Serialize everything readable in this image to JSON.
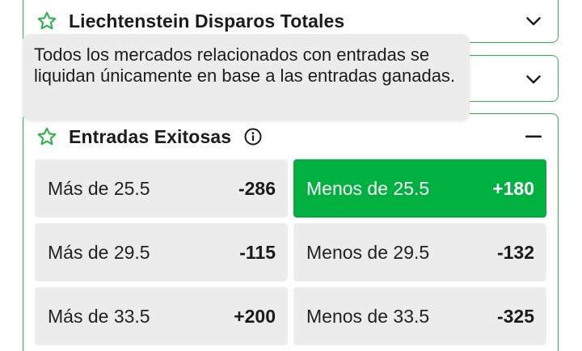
{
  "markets": [
    {
      "title": "Liechtenstein Disparos Totales",
      "toggle_icon": "chevron-down-icon"
    },
    {
      "title": "",
      "toggle_icon": "chevron-down-icon"
    },
    {
      "title": "Entradas Exitosas",
      "toggle_icon": "minus-icon",
      "rows": [
        {
          "over": {
            "label": "Más de 25.5",
            "price": "-286"
          },
          "under": {
            "label": "Menos de 25.5",
            "price": "+180",
            "selected": true
          }
        },
        {
          "over": {
            "label": "Más de 29.5",
            "price": "-115"
          },
          "under": {
            "label": "Menos de 29.5",
            "price": "-132"
          }
        },
        {
          "over": {
            "label": "Más de 33.5",
            "price": "+200"
          },
          "under": {
            "label": "Menos de 33.5",
            "price": "-325"
          }
        }
      ]
    }
  ],
  "tooltip": {
    "text": "Todos los mercados relacionados con entradas se liquidan únicamente en base a las entradas ganadas."
  },
  "colors": {
    "accent": "#00b140",
    "border": "#2fb34a",
    "button_bg": "#ececec"
  }
}
